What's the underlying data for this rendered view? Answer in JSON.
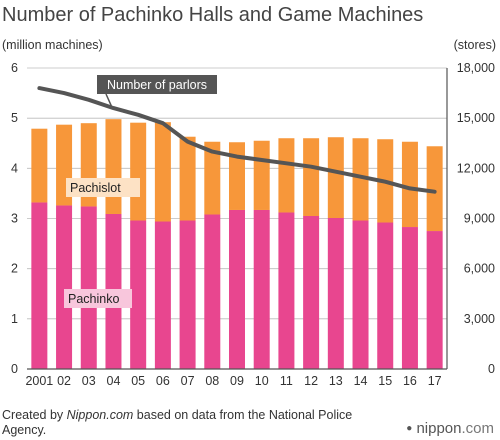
{
  "title": "Number of Pachinko Halls and Game Machines",
  "left_unit": "(million machines)",
  "right_unit": "(stores)",
  "footer": {
    "prefix": "Created by ",
    "source": "Nippon.com",
    "suffix": " based on data from the National Police Agency."
  },
  "brand": {
    "dot": "●",
    "name": "nippon",
    "tld": ".com"
  },
  "chart_data": {
    "type": "bar",
    "stacked": true,
    "categories": [
      "2001",
      "02",
      "03",
      "04",
      "05",
      "06",
      "07",
      "08",
      "09",
      "10",
      "11",
      "12",
      "13",
      "14",
      "15",
      "16",
      "17"
    ],
    "series": [
      {
        "name": "Pachinko",
        "color": "#e8468f",
        "axis": "left",
        "values": [
          3.32,
          3.26,
          3.24,
          3.09,
          2.96,
          2.94,
          2.96,
          3.08,
          3.17,
          3.17,
          3.12,
          3.05,
          3.01,
          2.96,
          2.92,
          2.83,
          2.75
        ]
      },
      {
        "name": "Pachislot",
        "color": "#f7973a",
        "axis": "left",
        "values": [
          1.47,
          1.61,
          1.66,
          1.89,
          1.95,
          1.98,
          1.67,
          1.45,
          1.35,
          1.38,
          1.48,
          1.55,
          1.61,
          1.64,
          1.66,
          1.7,
          1.69
        ]
      },
      {
        "name": "Number of parlors",
        "type": "line",
        "color": "#555555",
        "axis": "right",
        "values": [
          16800,
          16500,
          16100,
          15600,
          15200,
          14700,
          13600,
          13000,
          12700,
          12500,
          12300,
          12100,
          11800,
          11500,
          11200,
          10800,
          10600
        ]
      }
    ],
    "yleft": {
      "range": [
        0,
        6
      ],
      "ticks": [
        "0",
        "1",
        "2",
        "3",
        "4",
        "5",
        "6"
      ]
    },
    "yright": {
      "range": [
        0,
        18000
      ],
      "ticks": [
        "0",
        "3,000",
        "6,000",
        "9,000",
        "12,000",
        "15,000",
        "18,000"
      ]
    },
    "grid": true,
    "labels": {
      "pachislot": "Pachislot",
      "pachinko": "Pachinko",
      "parlors": "Number of parlors"
    }
  }
}
